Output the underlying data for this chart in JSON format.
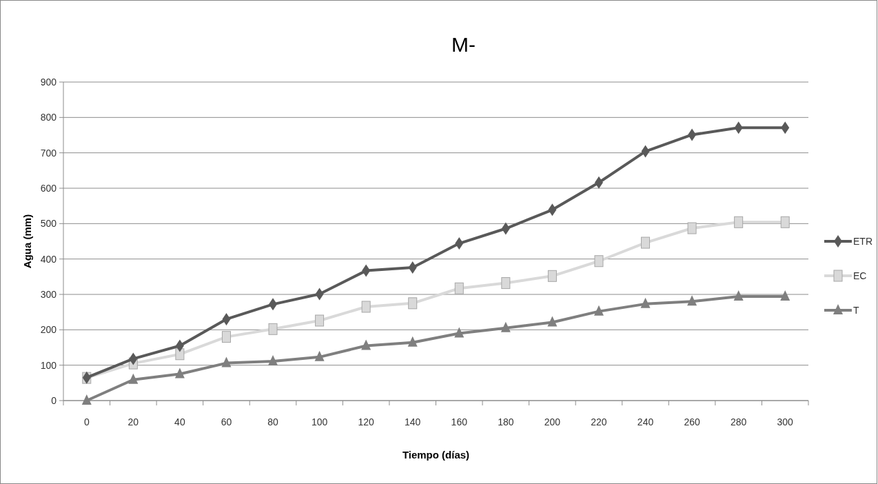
{
  "chart_data": {
    "type": "line",
    "title": "M-",
    "xlabel": "Tiempo (días)",
    "ylabel": "Agua (mm)",
    "categories": [
      "0",
      "20",
      "40",
      "60",
      "80",
      "100",
      "120",
      "140",
      "160",
      "180",
      "200",
      "220",
      "240",
      "260",
      "280",
      "300"
    ],
    "series": [
      {
        "name": "ETR",
        "color": "#595959",
        "marker": "diamond",
        "values": [
          65,
          118,
          155,
          230,
          272,
          301,
          367,
          376,
          444,
          486,
          539,
          616,
          704,
          751,
          771,
          771
        ]
      },
      {
        "name": "EC",
        "color": "#d9d9d9",
        "marker": "square",
        "values": [
          64,
          105,
          131,
          180,
          202,
          226,
          265,
          275,
          317,
          332,
          352,
          394,
          446,
          487,
          504,
          504
        ]
      },
      {
        "name": "T",
        "color": "#7f7f7f",
        "marker": "triangle",
        "values": [
          0,
          59,
          75,
          106,
          111,
          123,
          155,
          164,
          190,
          205,
          221,
          252,
          273,
          280,
          294,
          294
        ]
      }
    ],
    "ylim": [
      0,
      900
    ],
    "yticks": [
      0,
      100,
      200,
      300,
      400,
      500,
      600,
      700,
      800,
      900
    ],
    "grid": "y",
    "legend": "right",
    "line_style": "solid"
  }
}
